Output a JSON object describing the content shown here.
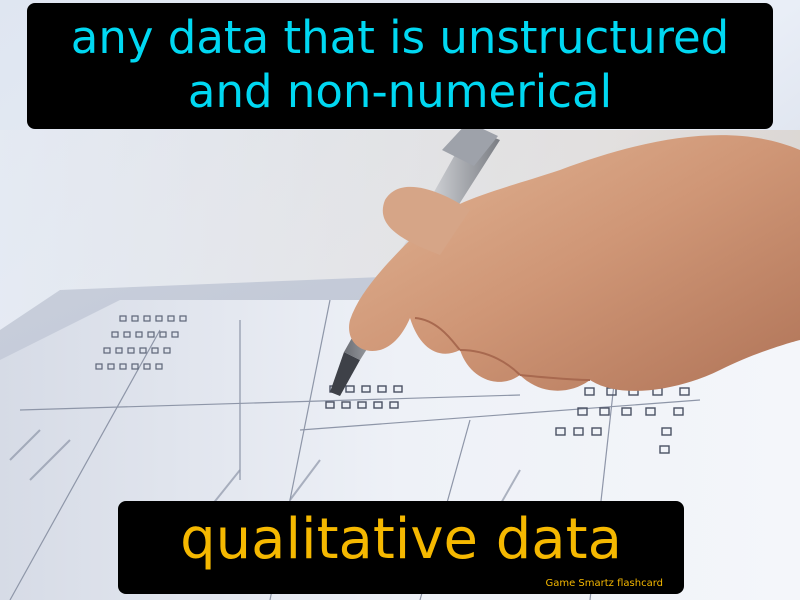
{
  "flashcard": {
    "definition_line1": "any data that is unstructured",
    "definition_line2": "and non-numerical",
    "term": "qualitative data",
    "brand": "Game Smartz flashcard"
  },
  "colors": {
    "definition_text": "#00d8f2",
    "term_text": "#f5b800",
    "caption_background": "#000000"
  },
  "photo": {
    "subject": "hand holding a silver pen filling in a questionnaire form with checkbox grids"
  }
}
